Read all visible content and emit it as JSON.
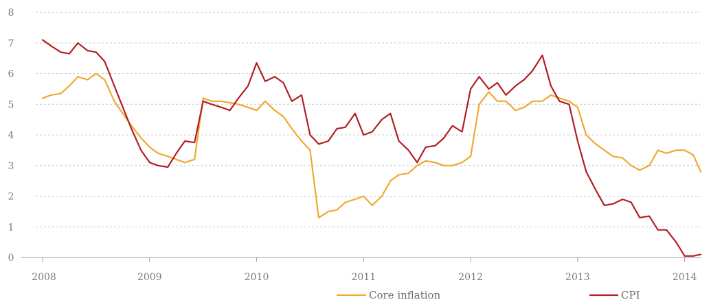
{
  "chart_data": {
    "type": "line",
    "title": "",
    "xlabel": "",
    "ylabel": "",
    "xlim": [
      2008.0,
      2014.15
    ],
    "ylim": [
      0,
      8
    ],
    "grid": true,
    "legend_placement": "bottom-right",
    "x_ticks": [
      "2008",
      "2009",
      "2010",
      "2011",
      "2012",
      "2013",
      "2014"
    ],
    "y_ticks": [
      "0",
      "1",
      "2",
      "3",
      "4",
      "5",
      "6",
      "7",
      "8"
    ],
    "series": [
      {
        "name": "Core inflation",
        "color": "#f0a830",
        "points": [
          [
            2008.0,
            5.2
          ],
          [
            2008.08,
            5.3
          ],
          [
            2008.17,
            5.35
          ],
          [
            2008.25,
            5.6
          ],
          [
            2008.33,
            5.9
          ],
          [
            2008.42,
            5.8
          ],
          [
            2008.5,
            6.0
          ],
          [
            2008.58,
            5.8
          ],
          [
            2008.67,
            5.1
          ],
          [
            2008.75,
            4.7
          ],
          [
            2008.83,
            4.3
          ],
          [
            2008.92,
            3.9
          ],
          [
            2009.0,
            3.6
          ],
          [
            2009.08,
            3.4
          ],
          [
            2009.17,
            3.3
          ],
          [
            2009.25,
            3.2
          ],
          [
            2009.33,
            3.1
          ],
          [
            2009.42,
            3.2
          ],
          [
            2009.5,
            5.2
          ],
          [
            2009.58,
            5.1
          ],
          [
            2009.67,
            5.1
          ],
          [
            2009.75,
            5.05
          ],
          [
            2009.83,
            5.0
          ],
          [
            2009.92,
            4.9
          ],
          [
            2010.0,
            4.8
          ],
          [
            2010.08,
            5.1
          ],
          [
            2010.17,
            4.8
          ],
          [
            2010.25,
            4.6
          ],
          [
            2010.33,
            4.2
          ],
          [
            2010.42,
            3.8
          ],
          [
            2010.5,
            3.5
          ],
          [
            2010.58,
            1.3
          ],
          [
            2010.67,
            1.5
          ],
          [
            2010.75,
            1.55
          ],
          [
            2010.83,
            1.8
          ],
          [
            2010.92,
            1.9
          ],
          [
            2011.0,
            2.0
          ],
          [
            2011.08,
            1.7
          ],
          [
            2011.17,
            2.0
          ],
          [
            2011.25,
            2.5
          ],
          [
            2011.33,
            2.7
          ],
          [
            2011.42,
            2.75
          ],
          [
            2011.5,
            3.0
          ],
          [
            2011.58,
            3.15
          ],
          [
            2011.67,
            3.1
          ],
          [
            2011.75,
            3.0
          ],
          [
            2011.83,
            3.0
          ],
          [
            2011.92,
            3.1
          ],
          [
            2012.0,
            3.3
          ],
          [
            2012.08,
            5.0
          ],
          [
            2012.17,
            5.4
          ],
          [
            2012.25,
            5.1
          ],
          [
            2012.33,
            5.1
          ],
          [
            2012.42,
            4.8
          ],
          [
            2012.5,
            4.9
          ],
          [
            2012.58,
            5.1
          ],
          [
            2012.67,
            5.1
          ],
          [
            2012.75,
            5.3
          ],
          [
            2012.83,
            5.2
          ],
          [
            2012.92,
            5.1
          ],
          [
            2013.0,
            4.9
          ],
          [
            2013.08,
            4.0
          ],
          [
            2013.17,
            3.7
          ],
          [
            2013.25,
            3.5
          ],
          [
            2013.33,
            3.3
          ],
          [
            2013.42,
            3.25
          ],
          [
            2013.5,
            3.0
          ],
          [
            2013.58,
            2.85
          ],
          [
            2013.67,
            3.0
          ],
          [
            2013.75,
            3.5
          ],
          [
            2013.83,
            3.4
          ],
          [
            2013.92,
            3.5
          ],
          [
            2014.0,
            3.5
          ],
          [
            2014.08,
            3.35
          ],
          [
            2014.15,
            2.8
          ]
        ]
      },
      {
        "name": "CPI",
        "color": "#b01e23",
        "points": [
          [
            2008.0,
            7.1
          ],
          [
            2008.08,
            6.9
          ],
          [
            2008.17,
            6.7
          ],
          [
            2008.25,
            6.65
          ],
          [
            2008.33,
            7.0
          ],
          [
            2008.42,
            6.75
          ],
          [
            2008.5,
            6.7
          ],
          [
            2008.58,
            6.4
          ],
          [
            2008.67,
            5.6
          ],
          [
            2008.75,
            4.9
          ],
          [
            2008.83,
            4.2
          ],
          [
            2008.92,
            3.5
          ],
          [
            2009.0,
            3.1
          ],
          [
            2009.08,
            3.0
          ],
          [
            2009.17,
            2.95
          ],
          [
            2009.25,
            3.4
          ],
          [
            2009.33,
            3.8
          ],
          [
            2009.42,
            3.75
          ],
          [
            2009.5,
            5.1
          ],
          [
            2009.58,
            5.0
          ],
          [
            2009.67,
            4.9
          ],
          [
            2009.75,
            4.8
          ],
          [
            2009.83,
            5.2
          ],
          [
            2009.92,
            5.6
          ],
          [
            2010.0,
            6.35
          ],
          [
            2010.08,
            5.75
          ],
          [
            2010.17,
            5.9
          ],
          [
            2010.25,
            5.7
          ],
          [
            2010.33,
            5.1
          ],
          [
            2010.42,
            5.3
          ],
          [
            2010.5,
            4.0
          ],
          [
            2010.58,
            3.7
          ],
          [
            2010.67,
            3.8
          ],
          [
            2010.75,
            4.2
          ],
          [
            2010.83,
            4.25
          ],
          [
            2010.92,
            4.7
          ],
          [
            2011.0,
            4.0
          ],
          [
            2011.08,
            4.1
          ],
          [
            2011.17,
            4.5
          ],
          [
            2011.25,
            4.7
          ],
          [
            2011.33,
            3.8
          ],
          [
            2011.42,
            3.5
          ],
          [
            2011.5,
            3.1
          ],
          [
            2011.58,
            3.6
          ],
          [
            2011.67,
            3.65
          ],
          [
            2011.75,
            3.9
          ],
          [
            2011.83,
            4.3
          ],
          [
            2011.92,
            4.1
          ],
          [
            2012.0,
            5.5
          ],
          [
            2012.08,
            5.9
          ],
          [
            2012.17,
            5.5
          ],
          [
            2012.25,
            5.7
          ],
          [
            2012.33,
            5.3
          ],
          [
            2012.42,
            5.6
          ],
          [
            2012.5,
            5.8
          ],
          [
            2012.58,
            6.1
          ],
          [
            2012.67,
            6.6
          ],
          [
            2012.75,
            5.6
          ],
          [
            2012.83,
            5.1
          ],
          [
            2012.92,
            5.0
          ],
          [
            2013.0,
            3.8
          ],
          [
            2013.08,
            2.8
          ],
          [
            2013.17,
            2.2
          ],
          [
            2013.25,
            1.7
          ],
          [
            2013.33,
            1.75
          ],
          [
            2013.42,
            1.9
          ],
          [
            2013.5,
            1.8
          ],
          [
            2013.58,
            1.3
          ],
          [
            2013.67,
            1.35
          ],
          [
            2013.75,
            0.9
          ],
          [
            2013.83,
            0.9
          ],
          [
            2013.92,
            0.5
          ],
          [
            2014.0,
            0.05
          ],
          [
            2014.08,
            0.05
          ],
          [
            2014.15,
            0.1
          ]
        ]
      }
    ]
  }
}
